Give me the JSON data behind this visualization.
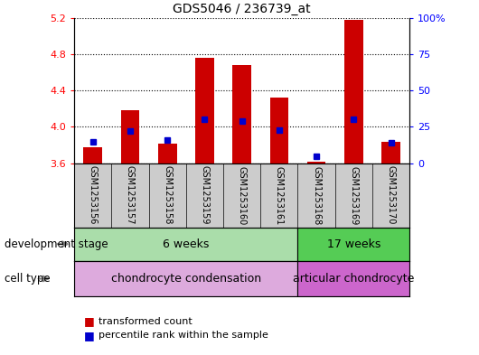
{
  "title": "GDS5046 / 236739_at",
  "samples": [
    "GSM1253156",
    "GSM1253157",
    "GSM1253158",
    "GSM1253159",
    "GSM1253160",
    "GSM1253161",
    "GSM1253168",
    "GSM1253169",
    "GSM1253170"
  ],
  "transformed_counts": [
    3.78,
    4.18,
    3.82,
    4.76,
    4.68,
    4.32,
    3.62,
    5.18,
    3.84
  ],
  "percentile_ranks": [
    15,
    22,
    16,
    30,
    29,
    23,
    5,
    30,
    14
  ],
  "ylim_left": [
    3.6,
    5.2
  ],
  "ylim_right": [
    0,
    100
  ],
  "yticks_left": [
    3.6,
    4.0,
    4.4,
    4.8,
    5.2
  ],
  "yticks_right": [
    0,
    25,
    50,
    75,
    100
  ],
  "ytick_right_labels": [
    "0",
    "25",
    "50",
    "75",
    "100%"
  ],
  "bar_color": "#cc0000",
  "dot_color": "#0000cc",
  "bar_baseline": 3.6,
  "bar_width": 0.5,
  "development_stage_groups": [
    {
      "label": "6 weeks",
      "start": 0,
      "end": 5,
      "color": "#aaddaa"
    },
    {
      "label": "17 weeks",
      "start": 6,
      "end": 8,
      "color": "#55cc55"
    }
  ],
  "cell_type_groups": [
    {
      "label": "chondrocyte condensation",
      "start": 0,
      "end": 5,
      "color": "#ddaadd"
    },
    {
      "label": "articular chondrocyte",
      "start": 6,
      "end": 8,
      "color": "#cc66cc"
    }
  ],
  "row_labels": [
    "development stage",
    "cell type"
  ],
  "legend_items": [
    {
      "color": "#cc0000",
      "label": "transformed count"
    },
    {
      "color": "#0000cc",
      "label": "percentile rank within the sample"
    }
  ],
  "background_color": "#ffffff",
  "plot_bg_color": "#ffffff",
  "tick_label_bg": "#cccccc"
}
